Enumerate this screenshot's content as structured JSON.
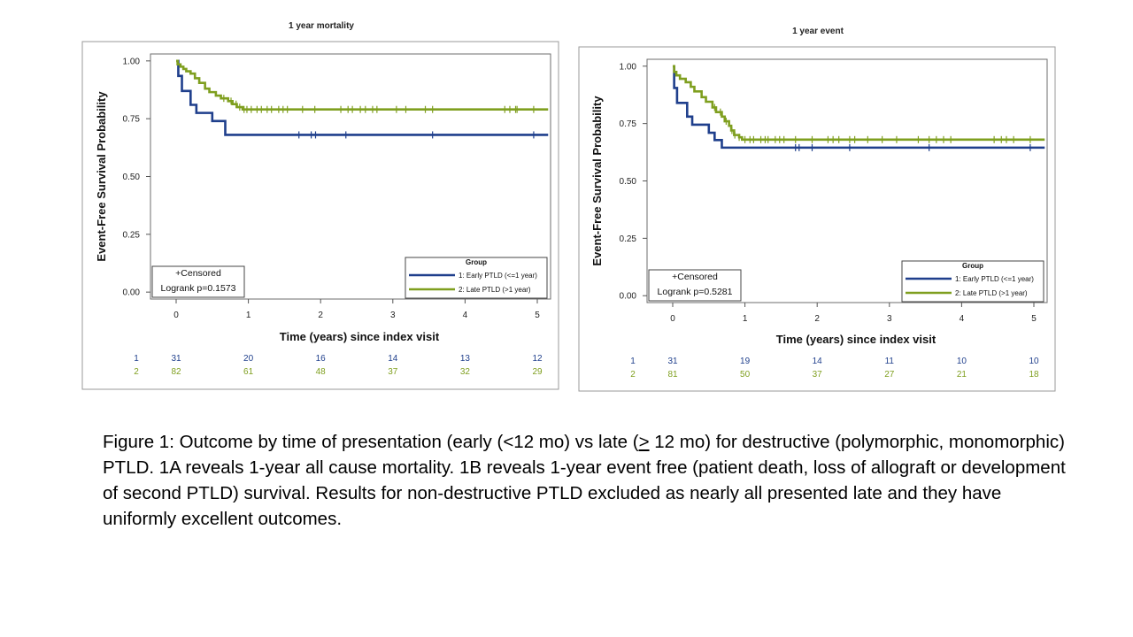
{
  "chart_data": [
    {
      "type": "line",
      "title": "1 year mortality",
      "xlabel": "Time (years) since index visit",
      "ylabel": "Event-Free Survival Probability",
      "xlim": [
        -0.3,
        5.15
      ],
      "ylim": [
        -0.03,
        1.03
      ],
      "xticks": [
        "0",
        "1",
        "2",
        "3",
        "4",
        "5"
      ],
      "yticks": [
        "0.00",
        "0.25",
        "0.50",
        "0.75",
        "1.00"
      ],
      "censor_note": "+Censored",
      "logrank": "Logrank p=0.1573",
      "legend_title": "Group",
      "legend_position": "bottom-right",
      "series": [
        {
          "name": "1: Early PTLD (<=1 year)",
          "color": "#1f3f8c",
          "steps": [
            [
              0,
              1.0
            ],
            [
              0.03,
              0.935
            ],
            [
              0.08,
              0.87
            ],
            [
              0.2,
              0.81
            ],
            [
              0.28,
              0.775
            ],
            [
              0.5,
              0.74
            ],
            [
              0.68,
              0.68
            ],
            [
              5.15,
              0.68
            ]
          ],
          "censored": [
            1.7,
            1.87,
            1.93,
            2.35,
            3.55,
            4.95
          ],
          "risk": {
            "label": "1",
            "values": [
              "31",
              "20",
              "16",
              "14",
              "13",
              "12"
            ]
          }
        },
        {
          "name": "2: Late PTLD (>1 year)",
          "color": "#7f9f1f",
          "steps": [
            [
              0,
              1.0
            ],
            [
              0.02,
              0.985
            ],
            [
              0.06,
              0.975
            ],
            [
              0.1,
              0.965
            ],
            [
              0.14,
              0.955
            ],
            [
              0.2,
              0.945
            ],
            [
              0.26,
              0.925
            ],
            [
              0.32,
              0.905
            ],
            [
              0.4,
              0.88
            ],
            [
              0.46,
              0.865
            ],
            [
              0.55,
              0.85
            ],
            [
              0.62,
              0.838
            ],
            [
              0.72,
              0.826
            ],
            [
              0.78,
              0.813
            ],
            [
              0.84,
              0.8
            ],
            [
              0.92,
              0.79
            ],
            [
              5.15,
              0.79
            ]
          ],
          "censored": [
            0.66,
            0.76,
            0.83,
            0.88,
            0.94,
            0.98,
            1.04,
            1.12,
            1.18,
            1.26,
            1.32,
            1.42,
            1.48,
            1.54,
            1.75,
            1.92,
            2.28,
            2.38,
            2.44,
            2.55,
            2.62,
            2.72,
            2.78,
            3.05,
            3.18,
            3.45,
            3.55,
            4.55,
            4.62,
            4.7,
            4.72,
            4.95
          ],
          "risk": {
            "label": "2",
            "values": [
              "82",
              "61",
              "48",
              "37",
              "32",
              "29"
            ]
          }
        }
      ]
    },
    {
      "type": "line",
      "title": "1 year event",
      "xlabel": "Time (years) since index visit",
      "ylabel": "Event-Free Survival Probability",
      "xlim": [
        -0.3,
        5.15
      ],
      "ylim": [
        -0.03,
        1.03
      ],
      "xticks": [
        "0",
        "1",
        "2",
        "3",
        "4",
        "5"
      ],
      "yticks": [
        "0.00",
        "0.25",
        "0.50",
        "0.75",
        "1.00"
      ],
      "censor_note": "+Censored",
      "logrank": "Logrank p=0.5281",
      "legend_title": "Group",
      "legend_position": "bottom-right",
      "series": [
        {
          "name": "1: Early PTLD (<=1 year)",
          "color": "#1f3f8c",
          "steps": [
            [
              0,
              1.0
            ],
            [
              0.02,
              0.905
            ],
            [
              0.06,
              0.84
            ],
            [
              0.2,
              0.78
            ],
            [
              0.27,
              0.745
            ],
            [
              0.5,
              0.71
            ],
            [
              0.58,
              0.678
            ],
            [
              0.68,
              0.645
            ],
            [
              5.15,
              0.645
            ]
          ],
          "censored": [
            1.7,
            1.75,
            1.93,
            2.45,
            3.55,
            4.95
          ],
          "risk": {
            "label": "1",
            "values": [
              "31",
              "19",
              "14",
              "11",
              "10",
              "10"
            ]
          }
        },
        {
          "name": "2: Late PTLD (>1 year)",
          "color": "#7f9f1f",
          "steps": [
            [
              0,
              1.0
            ],
            [
              0.02,
              0.975
            ],
            [
              0.05,
              0.96
            ],
            [
              0.1,
              0.945
            ],
            [
              0.18,
              0.93
            ],
            [
              0.25,
              0.91
            ],
            [
              0.3,
              0.89
            ],
            [
              0.4,
              0.865
            ],
            [
              0.46,
              0.845
            ],
            [
              0.55,
              0.82
            ],
            [
              0.6,
              0.8
            ],
            [
              0.68,
              0.78
            ],
            [
              0.72,
              0.76
            ],
            [
              0.78,
              0.74
            ],
            [
              0.81,
              0.72
            ],
            [
              0.85,
              0.7
            ],
            [
              0.92,
              0.69
            ],
            [
              0.96,
              0.68
            ],
            [
              5.15,
              0.68
            ]
          ],
          "censored": [
            0.58,
            0.66,
            0.74,
            0.82,
            0.86,
            0.92,
            1.0,
            1.07,
            1.12,
            1.22,
            1.28,
            1.32,
            1.42,
            1.48,
            1.54,
            1.7,
            1.93,
            2.15,
            2.22,
            2.3,
            2.45,
            2.52,
            2.7,
            2.9,
            3.1,
            3.4,
            3.55,
            3.65,
            3.75,
            3.85,
            4.45,
            4.55,
            4.62,
            4.72,
            4.95
          ],
          "risk": {
            "label": "2",
            "values": [
              "81",
              "50",
              "37",
              "27",
              "21",
              "18"
            ]
          }
        }
      ]
    }
  ],
  "caption": {
    "part1": "Figure 1:  Outcome by time of presentation (early (<12 mo) vs late (",
    "ge": ">",
    "part2": " 12 mo) for destructive (polymorphic, monomorphic) PTLD.   1A reveals 1-year all cause mortality. 1B reveals 1-year event free (patient death, loss of allograft or development of second PTLD) survival.  Results for non-destructive PTLD excluded as nearly all presented late and they have uniformly excellent outcomes."
  }
}
